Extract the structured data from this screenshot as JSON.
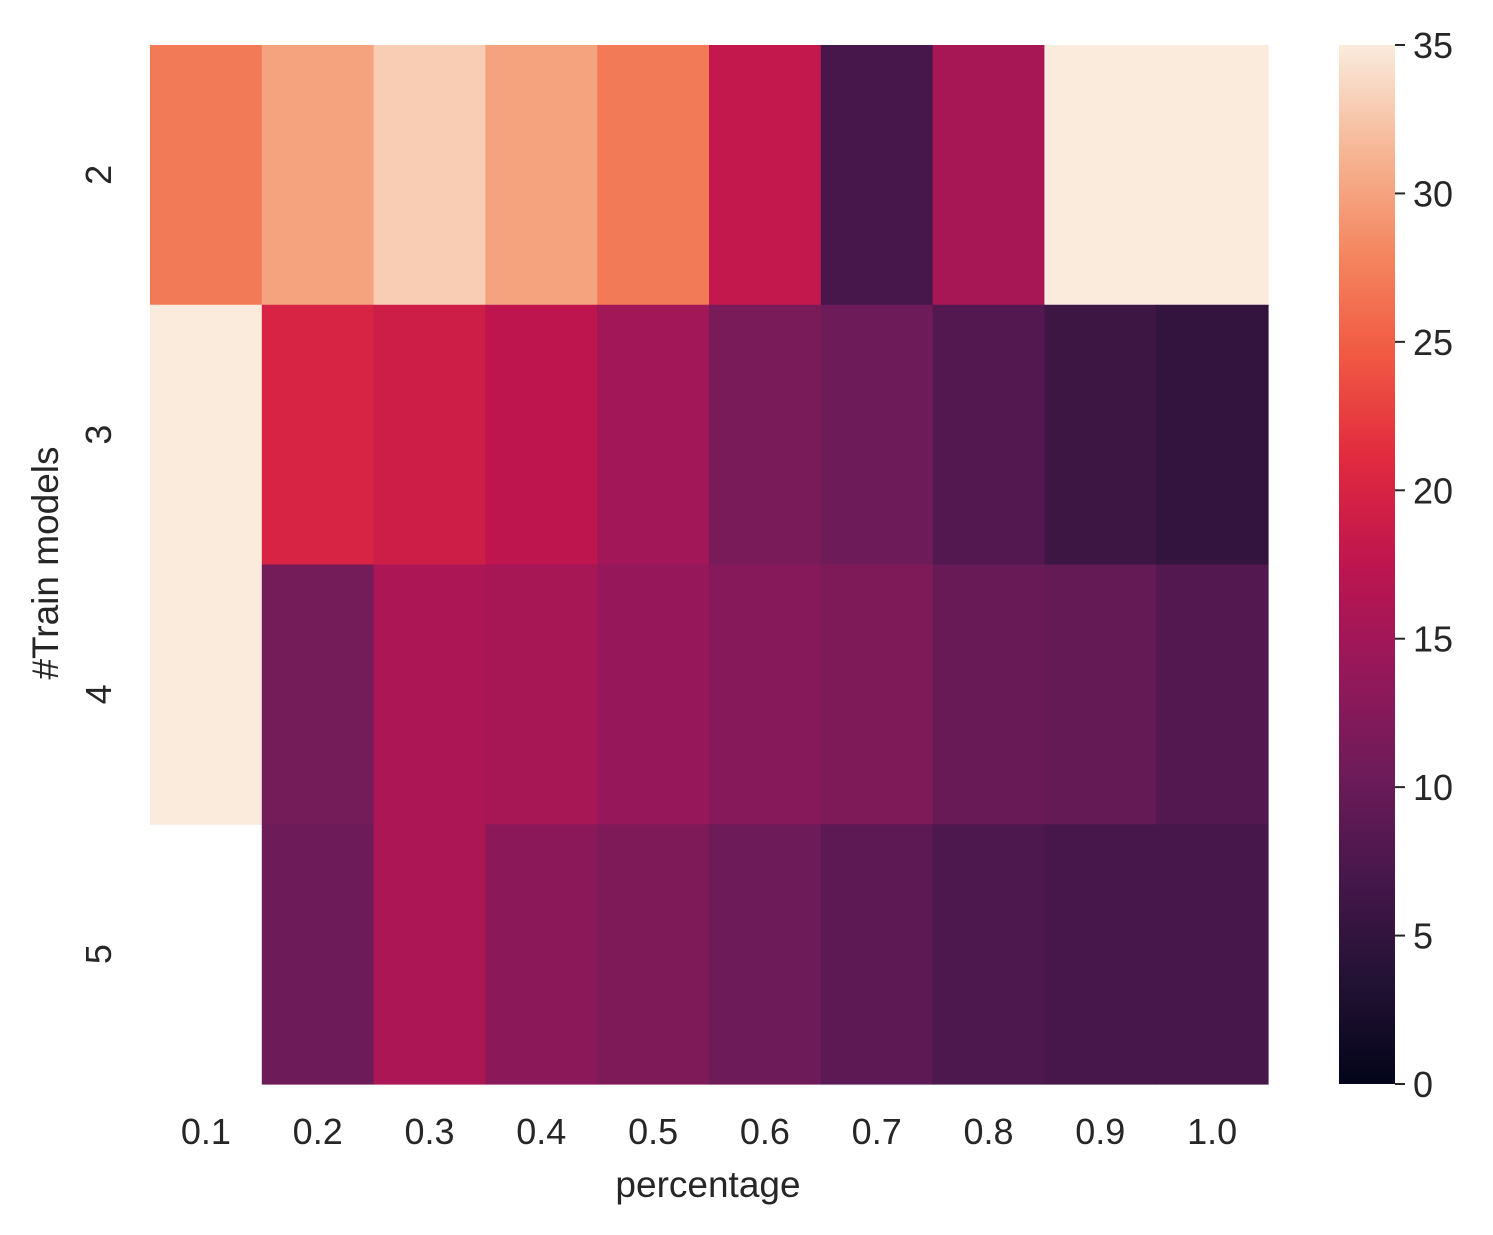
{
  "chart_data": {
    "type": "heatmap",
    "xlabel": "percentage",
    "ylabel": "#Train models",
    "x_categories": [
      "0.1",
      "0.2",
      "0.3",
      "0.4",
      "0.5",
      "0.6",
      "0.7",
      "0.8",
      "0.9",
      "1.0"
    ],
    "y_categories": [
      "2",
      "3",
      "4",
      "5"
    ],
    "values": [
      [
        27,
        30,
        33,
        30,
        27,
        18,
        7,
        15.5,
        35,
        35
      ],
      [
        35,
        20,
        19,
        17.5,
        15,
        11.5,
        10.5,
        8,
        6,
        5
      ],
      [
        35,
        11,
        16,
        15.5,
        14,
        12.5,
        12,
        10,
        9.5,
        8
      ],
      [
        null,
        10.5,
        16,
        13,
        12,
        10.5,
        9,
        7.5,
        7,
        7
      ]
    ],
    "colorbar": {
      "vmin": 0,
      "vmax": 35,
      "ticks": [
        "0",
        "5",
        "10",
        "15",
        "20",
        "25",
        "30",
        "35"
      ],
      "colormap": "rocket"
    }
  }
}
